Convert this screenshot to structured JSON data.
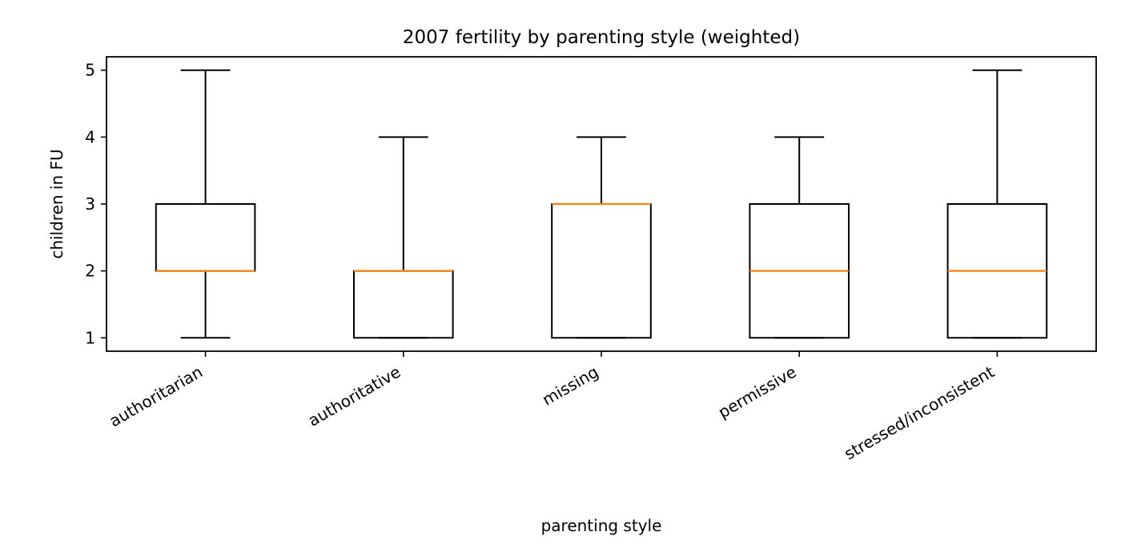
{
  "chart_data": {
    "type": "box",
    "title": "2007 fertility by parenting style (weighted)",
    "xlabel": "parenting style",
    "ylabel": "children in FU",
    "ylim": [
      0.8,
      5.2
    ],
    "yticks": [
      1,
      2,
      3,
      4,
      5
    ],
    "categories": [
      "authoritarian",
      "authoritative",
      "missing",
      "permissive",
      "stressed/inconsistent"
    ],
    "boxes": [
      {
        "whisker_low": 1,
        "q1": 2,
        "median": 2,
        "q3": 3,
        "whisker_high": 5
      },
      {
        "whisker_low": 1,
        "q1": 1,
        "median": 2,
        "q3": 2,
        "whisker_high": 4
      },
      {
        "whisker_low": 1,
        "q1": 1,
        "median": 3,
        "q3": 3,
        "whisker_high": 4
      },
      {
        "whisker_low": 1,
        "q1": 1,
        "median": 2,
        "q3": 3,
        "whisker_high": 4
      },
      {
        "whisker_low": 1,
        "q1": 1,
        "median": 2,
        "q3": 3,
        "whisker_high": 5
      }
    ],
    "box_color": "#000000",
    "median_color": "#ff7f0e",
    "grid": false,
    "legend": "none"
  }
}
